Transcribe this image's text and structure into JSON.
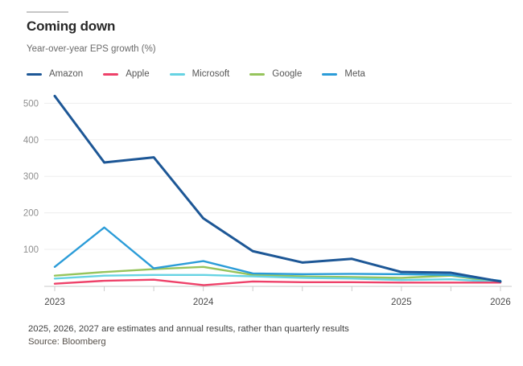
{
  "chart_data": {
    "type": "line",
    "title": "Coming down",
    "subtitle": "Year-over-year EPS growth (%)",
    "footnote": "2025, 2026, 2027 are estimates and annual results, rather than quarterly results",
    "source": "Source: Bloomberg",
    "legend_position": "top",
    "grid": "horizontal-only",
    "num_points": 10,
    "x_tick_labels": [
      {
        "label": "2023",
        "point": 0
      },
      {
        "label": "2024",
        "point": 3
      },
      {
        "label": "2025",
        "point": 7
      },
      {
        "label": "2026",
        "point": 9
      }
    ],
    "yticks": [
      100,
      200,
      300,
      400,
      500
    ],
    "ylim": [
      0,
      540
    ],
    "series": [
      {
        "name": "Amazon",
        "color": "#1d5796",
        "values": [
          520,
          338,
          352,
          185,
          95,
          64,
          74,
          38,
          36,
          12
        ]
      },
      {
        "name": "Apple",
        "color": "#ee4169",
        "values": [
          6,
          14,
          17,
          2,
          12,
          10,
          10,
          9,
          9,
          9
        ]
      },
      {
        "name": "Microsoft",
        "color": "#66d3e3",
        "values": [
          20,
          28,
          30,
          30,
          26,
          22,
          20,
          16,
          18,
          10
        ]
      },
      {
        "name": "Google",
        "color": "#96c45c",
        "values": [
          28,
          38,
          46,
          52,
          30,
          26,
          24,
          22,
          28,
          10
        ]
      },
      {
        "name": "Meta",
        "color": "#2b9cd8",
        "values": [
          52,
          160,
          48,
          68,
          34,
          32,
          33,
          32,
          30,
          14
        ]
      }
    ],
    "colors": {
      "gridline": "#ededed",
      "axis_line": "#c8c8c8",
      "tick_mark": "#cccccc"
    }
  }
}
